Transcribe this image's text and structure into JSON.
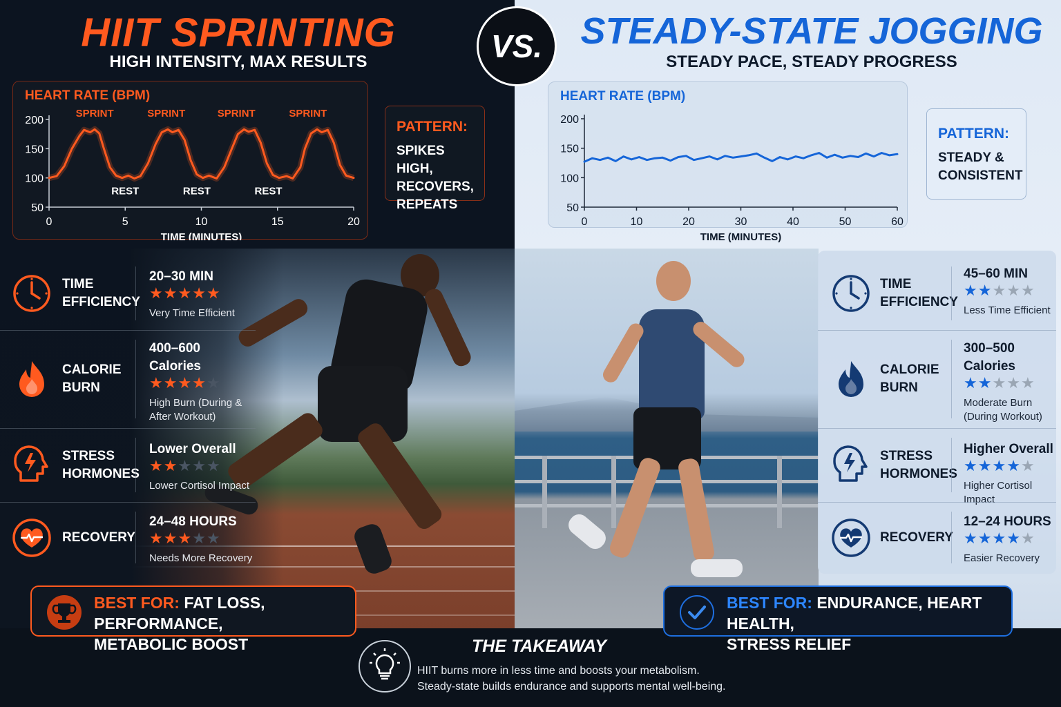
{
  "left": {
    "title": "HIIT SPRINTING",
    "subtitle": "HIGH INTENSITY, MAX RESULTS",
    "pattern_head": "PATTERN:",
    "pattern_lines": [
      "SPIKES HIGH,",
      "RECOVERS,",
      "REPEATS"
    ],
    "metrics": [
      {
        "label1": "TIME",
        "label2": "EFFICIENCY",
        "value1": "20–30 MIN",
        "value2": "",
        "rating": 5,
        "note1": "Very Time Efficient",
        "note2": ""
      },
      {
        "label1": "CALORIE",
        "label2": "BURN",
        "value1": "400–600",
        "value2": "Calories",
        "rating": 4,
        "note1": "High Burn (During &",
        "note2": "After Workout)"
      },
      {
        "label1": "STRESS",
        "label2": "HORMONES",
        "value1": "Lower Overall",
        "value2": "",
        "rating": 2,
        "note1": "Lower Cortisol Impact",
        "note2": ""
      },
      {
        "label1": "RECOVERY",
        "label2": "",
        "value1": "24–48 HOURS",
        "value2": "",
        "rating": 3,
        "note1": "Needs More Recovery",
        "note2": ""
      }
    ],
    "best_for_label": "BEST FOR:",
    "best_for_line1": "FAT LOSS, PERFORMANCE,",
    "best_for_line2": "METABOLIC BOOST"
  },
  "right": {
    "title": "STEADY-STATE JOGGING",
    "subtitle": "STEADY PACE, STEADY PROGRESS",
    "pattern_head": "PATTERN:",
    "pattern_lines": [
      "STEADY &",
      "CONSISTENT"
    ],
    "metrics": [
      {
        "label1": "TIME",
        "label2": "EFFICIENCY",
        "value1": "45–60 MIN",
        "value2": "",
        "rating": 2,
        "note1": "Less Time Efficient",
        "note2": ""
      },
      {
        "label1": "CALORIE",
        "label2": "BURN",
        "value1": "300–500",
        "value2": "Calories",
        "rating": 2,
        "note1": "Moderate Burn",
        "note2": "(During Workout)"
      },
      {
        "label1": "STRESS",
        "label2": "HORMONES",
        "value1": "Higher Overall",
        "value2": "",
        "rating": 4,
        "note1": "Higher Cortisol Impact",
        "note2": ""
      },
      {
        "label1": "RECOVERY",
        "label2": "",
        "value1": "12–24 HOURS",
        "value2": "",
        "rating": 4,
        "note1": "Easier Recovery",
        "note2": ""
      }
    ],
    "best_for_label": "BEST FOR:",
    "best_for_line1": "ENDURANCE, HEART HEALTH,",
    "best_for_line2": "STRESS RELIEF"
  },
  "vs": "VS.",
  "takeaway": {
    "title": "THE TAKEAWAY",
    "line1": "HIIT burns more in less time and boosts your metabolism.",
    "line2": "Steady-state builds endurance and supports mental well-being."
  },
  "colors": {
    "hiit": "#ff5a1f",
    "steady": "#1565d8",
    "star_empty_dark": "#4a5563",
    "star_empty_light": "#9aa6b4"
  },
  "icons": [
    "clock-icon",
    "flame-icon",
    "head-bolt-icon",
    "heart-pulse-icon",
    "trophy-icon",
    "check-circle-icon",
    "lightbulb-icon"
  ],
  "chart_data": [
    {
      "type": "line",
      "title": "HEART RATE (BPM)",
      "xlabel": "TIME (MINUTES)",
      "ylabel": "",
      "xlim": [
        0,
        20
      ],
      "ylim": [
        50,
        200
      ],
      "xticks": [
        0,
        5,
        10,
        15,
        20
      ],
      "yticks": [
        50,
        100,
        150,
        200
      ],
      "color": "#ff5a1f",
      "annotations": [
        {
          "text": "SPRINT",
          "x": 3
        },
        {
          "text": "SPRINT",
          "x": 7.7
        },
        {
          "text": "SPRINT",
          "x": 12.3
        },
        {
          "text": "SPRINT",
          "x": 17
        },
        {
          "text": "REST",
          "x": 5
        },
        {
          "text": "REST",
          "x": 9.7
        },
        {
          "text": "REST",
          "x": 14.4
        }
      ],
      "series": [
        {
          "x": [
            0,
            0.5,
            1,
            1.5,
            2,
            2.3,
            2.7,
            3,
            3.3,
            3.6,
            4,
            4.4,
            4.8,
            5.2,
            5.6,
            6,
            6.5,
            7,
            7.4,
            7.8,
            8.1,
            8.5,
            8.9,
            9.3,
            9.7,
            10.1,
            10.5,
            11,
            11.5,
            12,
            12.4,
            12.8,
            13.1,
            13.5,
            13.9,
            14.3,
            14.7,
            15.1,
            15.6,
            16,
            16.5,
            16.8,
            17.2,
            17.6,
            17.9,
            18.3,
            18.7,
            19.1,
            19.5,
            20
          ],
          "y": [
            100,
            103,
            120,
            150,
            172,
            182,
            178,
            183,
            176,
            150,
            118,
            104,
            100,
            104,
            99,
            103,
            125,
            158,
            178,
            183,
            178,
            182,
            165,
            130,
            106,
            100,
            104,
            99,
            118,
            150,
            175,
            183,
            179,
            182,
            160,
            125,
            105,
            100,
            103,
            99,
            118,
            150,
            176,
            183,
            178,
            182,
            160,
            122,
            104,
            100
          ]
        }
      ]
    },
    {
      "type": "line",
      "title": "HEART RATE (BPM)",
      "xlabel": "TIME (MINUTES)",
      "ylabel": "",
      "xlim": [
        0,
        60
      ],
      "ylim": [
        50,
        200
      ],
      "xticks": [
        0,
        10,
        20,
        30,
        40,
        50,
        60
      ],
      "yticks": [
        50,
        100,
        150,
        200
      ],
      "color": "#1565d8",
      "series": [
        {
          "x": [
            0,
            1.5,
            3,
            4.5,
            6,
            7.5,
            9,
            10.5,
            12,
            13.5,
            15,
            16.5,
            18,
            19.5,
            21,
            22.5,
            24,
            25.5,
            27,
            28.5,
            30,
            31.5,
            33,
            34.5,
            36,
            37.5,
            39,
            40.5,
            42,
            43.5,
            45,
            46.5,
            48,
            49.5,
            51,
            52.5,
            54,
            55.5,
            57,
            58.5,
            60
          ],
          "y": [
            127,
            133,
            130,
            134,
            128,
            136,
            131,
            135,
            130,
            133,
            134,
            129,
            135,
            137,
            130,
            133,
            136,
            131,
            137,
            134,
            136,
            138,
            141,
            134,
            128,
            135,
            131,
            136,
            133,
            138,
            142,
            134,
            139,
            134,
            137,
            135,
            141,
            136,
            142,
            138,
            140
          ]
        }
      ]
    }
  ]
}
